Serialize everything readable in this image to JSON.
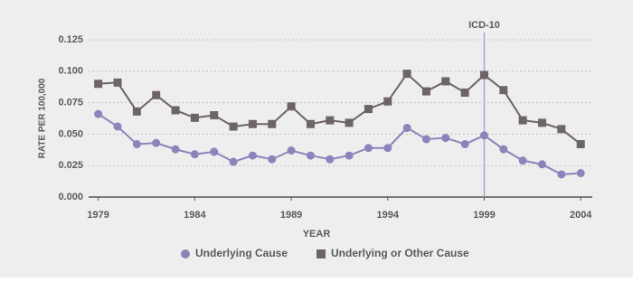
{
  "chart_data": {
    "type": "line",
    "x_label": "YEAR",
    "y_label": "RATE PER 100,000",
    "x": [
      1979,
      1980,
      1981,
      1982,
      1983,
      1984,
      1985,
      1986,
      1987,
      1988,
      1989,
      1990,
      1991,
      1992,
      1993,
      1994,
      1995,
      1996,
      1997,
      1998,
      1999,
      2000,
      2001,
      2002,
      2003,
      2004
    ],
    "series": [
      {
        "name": "Underlying Cause",
        "color": "#8b84bb",
        "marker": "circle",
        "values": [
          0.066,
          0.056,
          0.042,
          0.043,
          0.038,
          0.034,
          0.036,
          0.028,
          0.033,
          0.03,
          0.037,
          0.033,
          0.03,
          0.033,
          0.039,
          0.039,
          0.055,
          0.046,
          0.047,
          0.042,
          0.049,
          0.038,
          0.029,
          0.026,
          0.018,
          0.019
        ]
      },
      {
        "name": "Underlying or Other Cause",
        "color": "#6d6466",
        "marker": "square",
        "values": [
          0.09,
          0.091,
          0.068,
          0.081,
          0.069,
          0.063,
          0.065,
          0.056,
          0.058,
          0.058,
          0.072,
          0.058,
          0.061,
          0.059,
          0.07,
          0.076,
          0.098,
          0.084,
          0.092,
          0.083,
          0.097,
          0.085,
          0.061,
          0.059,
          0.054,
          0.042
        ]
      }
    ],
    "xlim": [
      1978.5,
      2004.6
    ],
    "xticks": [
      1979,
      1984,
      1989,
      1994,
      1999,
      2004
    ],
    "ylim": [
      0,
      0.125
    ],
    "yticks": [
      {
        "value": 0,
        "label": "0.000"
      },
      {
        "value": 0.025,
        "label": "0.025"
      },
      {
        "value": 0.05,
        "label": "0.050"
      },
      {
        "value": 0.075,
        "label": "0.075"
      },
      {
        "value": 0.1,
        "label": "0.100"
      },
      {
        "value": 0.125,
        "label": "0.125"
      }
    ],
    "grid": true,
    "annotations": [
      {
        "text": "ICD-10",
        "x": 1999
      }
    ],
    "legend": "bottom"
  }
}
